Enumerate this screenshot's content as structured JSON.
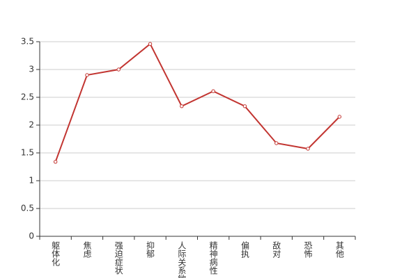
{
  "chart_data": {
    "type": "line",
    "categories": [
      "躯体化",
      "焦虑",
      "强迫症状",
      "抑郁",
      "人际关系敏感",
      "精神病性",
      "偏执",
      "敌对",
      "恐怖",
      "其他"
    ],
    "series": [
      {
        "color": "#c23531",
        "values": [
          1.34,
          2.9,
          3.0,
          3.46,
          2.34,
          2.61,
          2.34,
          1.675,
          1.575,
          2.15
        ]
      }
    ],
    "ylim": [
      0,
      3.5
    ],
    "yticks": [
      0,
      0.5,
      1,
      1.5,
      2,
      2.5,
      3,
      3.5
    ],
    "grid": true
  }
}
